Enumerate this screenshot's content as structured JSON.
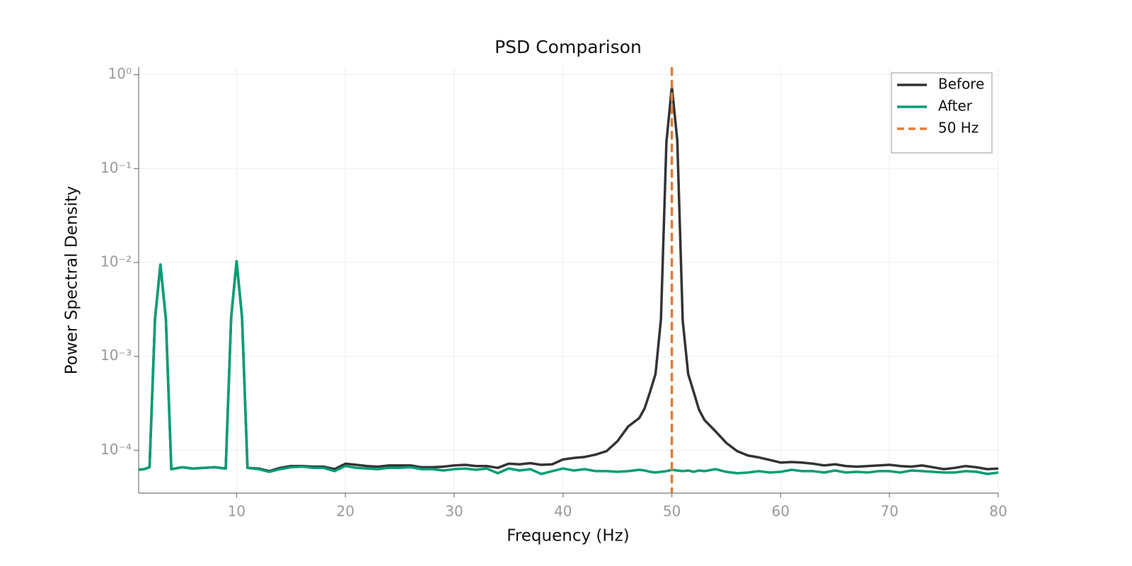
{
  "chart_data": {
    "type": "line",
    "title": "PSD Comparison",
    "xlabel": "Frequency (Hz)",
    "ylabel": "Power Spectral Density",
    "x": [
      1,
      1.5,
      2,
      2.5,
      3,
      3.5,
      4,
      5,
      6,
      7,
      8,
      9,
      9.5,
      10,
      10.5,
      11,
      12,
      13,
      14,
      15,
      16,
      17,
      18,
      19,
      20,
      21,
      22,
      23,
      24,
      25,
      26,
      27,
      28,
      29,
      30,
      31,
      32,
      33,
      34,
      35,
      36,
      37,
      38,
      39,
      40,
      41,
      42,
      43,
      44,
      45,
      46,
      47,
      47.5,
      48,
      48.5,
      49,
      49.5,
      50,
      50.5,
      51,
      51.5,
      52,
      52.5,
      53,
      54,
      55,
      56,
      57,
      58,
      59,
      60,
      61,
      62,
      63,
      64,
      65,
      66,
      67,
      68,
      69,
      70,
      71,
      72,
      73,
      74,
      75,
      76,
      77,
      78,
      79,
      80
    ],
    "series": [
      {
        "name": "Before",
        "color": "#333333",
        "values": [
          6.2e-05,
          6.3e-05,
          6.6e-05,
          0.0025,
          0.0095,
          0.0025,
          6.3e-05,
          6.6e-05,
          6.4e-05,
          6.5e-05,
          6.6e-05,
          6.4e-05,
          0.0026,
          0.0103,
          0.0026,
          6.5e-05,
          6.4e-05,
          6e-05,
          6.5e-05,
          6.8e-05,
          6.8e-05,
          6.7e-05,
          6.7e-05,
          6.3e-05,
          7.2e-05,
          7e-05,
          6.8e-05,
          6.7e-05,
          6.9e-05,
          6.9e-05,
          6.9e-05,
          6.6e-05,
          6.6e-05,
          6.7e-05,
          6.9e-05,
          7e-05,
          6.8e-05,
          6.8e-05,
          6.5e-05,
          7.2e-05,
          7.1e-05,
          7.3e-05,
          7e-05,
          7.1e-05,
          8e-05,
          8.3e-05,
          8.5e-05,
          9e-05,
          9.8e-05,
          0.000125,
          0.00018,
          0.00022,
          0.00028,
          0.00042,
          0.00065,
          0.0025,
          0.19,
          0.75,
          0.2,
          0.0024,
          0.00065,
          0.00042,
          0.00027,
          0.00021,
          0.00016,
          0.00012,
          9.8e-05,
          8.8e-05,
          8.4e-05,
          7.9e-05,
          7.4e-05,
          7.5e-05,
          7.4e-05,
          7.2e-05,
          6.9e-05,
          7.1e-05,
          6.8e-05,
          6.7e-05,
          6.8e-05,
          6.9e-05,
          7e-05,
          6.8e-05,
          6.7e-05,
          6.9e-05,
          6.6e-05,
          6.3e-05,
          6.5e-05,
          6.8e-05,
          6.6e-05,
          6.3e-05,
          6.4e-05
        ]
      },
      {
        "name": "After",
        "color": "#009e73",
        "values": [
          6.2e-05,
          6.3e-05,
          6.6e-05,
          0.0025,
          0.0095,
          0.0025,
          6.3e-05,
          6.6e-05,
          6.4e-05,
          6.5e-05,
          6.6e-05,
          6.4e-05,
          0.0026,
          0.0103,
          0.0026,
          6.5e-05,
          6.3e-05,
          5.9e-05,
          6.3e-05,
          6.6e-05,
          6.7e-05,
          6.5e-05,
          6.5e-05,
          6e-05,
          6.8e-05,
          6.5e-05,
          6.4e-05,
          6.3e-05,
          6.5e-05,
          6.5e-05,
          6.6e-05,
          6.3e-05,
          6.3e-05,
          6.1e-05,
          6.3e-05,
          6.4e-05,
          6.2e-05,
          6.4e-05,
          5.7e-05,
          6.4e-05,
          6.1e-05,
          6.3e-05,
          5.6e-05,
          6e-05,
          6.4e-05,
          6.1e-05,
          6.3e-05,
          6e-05,
          6e-05,
          5.9e-05,
          6e-05,
          6.2e-05,
          6.1e-05,
          5.9e-05,
          5.8e-05,
          5.9e-05,
          6e-05,
          6.2e-05,
          6.1e-05,
          6e-05,
          6.1e-05,
          5.9e-05,
          6.1e-05,
          6e-05,
          6.3e-05,
          5.9e-05,
          5.7e-05,
          5.8e-05,
          6e-05,
          5.8e-05,
          5.9e-05,
          6.2e-05,
          6e-05,
          6e-05,
          5.8e-05,
          6.1e-05,
          5.8e-05,
          5.9e-05,
          5.8e-05,
          6e-05,
          6e-05,
          5.8e-05,
          6.1e-05,
          6e-05,
          5.9e-05,
          5.8e-05,
          5.8e-05,
          6e-05,
          5.9e-05,
          5.6e-05,
          5.8e-05
        ]
      }
    ],
    "vline": {
      "x": 50,
      "label": "50 Hz",
      "color": "#e07b39"
    },
    "xlim": [
      1,
      80
    ],
    "xticks": [
      10,
      20,
      30,
      40,
      50,
      60,
      70,
      80
    ],
    "ylim": [
      3.5e-05,
      1.2
    ],
    "yscale": "log",
    "yticks": [
      {
        "value": 0.0001,
        "label": "10⁻⁴"
      },
      {
        "value": 0.001,
        "label": "10⁻³"
      },
      {
        "value": 0.01,
        "label": "10⁻²"
      },
      {
        "value": 0.1,
        "label": "10⁻¹"
      },
      {
        "value": 1,
        "label": "10⁰"
      }
    ],
    "grid": true,
    "legend": "upper right"
  }
}
